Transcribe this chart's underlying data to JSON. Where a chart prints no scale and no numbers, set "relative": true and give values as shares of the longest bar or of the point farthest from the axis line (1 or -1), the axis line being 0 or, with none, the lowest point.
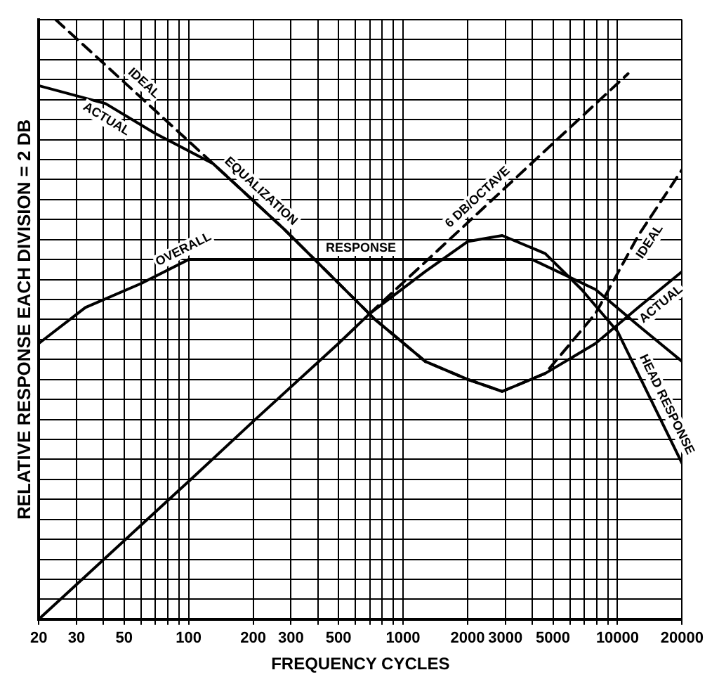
{
  "chart_data": {
    "type": "line",
    "relative": true,
    "xlabel": "FREQUENCY CYCLES",
    "ylabel": "RELATIVE RESPONSE EACH DIVISION = 2 DB",
    "log": "x",
    "grid": true,
    "legend": false,
    "marker": "none",
    "xlim": [
      20,
      20000
    ],
    "xticks": [
      20,
      30,
      {
        "value": 40,
        "label": null
      },
      50,
      {
        "value": 60,
        "label": null
      },
      {
        "value": 70,
        "label": null
      },
      {
        "value": 80,
        "label": null
      },
      {
        "value": 90,
        "label": null
      },
      100,
      200,
      300,
      {
        "value": 400,
        "label": null
      },
      500,
      {
        "value": 600,
        "label": null
      },
      {
        "value": 700,
        "label": null
      },
      {
        "value": 800,
        "label": null
      },
      {
        "value": 900,
        "label": null
      },
      1000,
      2000,
      3000,
      {
        "value": 4000,
        "label": null
      },
      5000,
      {
        "value": 6000,
        "label": null
      },
      {
        "value": 7000,
        "label": null
      },
      {
        "value": 8000,
        "label": null
      },
      {
        "value": 9000,
        "label": null
      },
      10000,
      20000
    ],
    "series": [
      {
        "color": "#000000",
        "line_style": "dashed",
        "x": [
          24,
          60,
          130,
          280,
          740,
          1270,
          2000,
          2900,
          4600,
          7900,
          12500,
          20000
        ],
        "values": [
          1.0,
          0.87,
          0.76,
          0.65,
          0.5,
          0.43,
          0.4,
          0.38,
          0.41,
          0.51,
          0.64,
          0.75
        ]
      },
      {
        "color": "#000000",
        "line_style": "solid",
        "x": [
          20,
          41,
          70,
          130,
          280,
          740,
          1270,
          2000,
          2900,
          4600,
          7900,
          12500,
          20000
        ],
        "values": [
          0.89,
          0.86,
          0.81,
          0.76,
          0.65,
          0.5,
          0.43,
          0.4,
          0.38,
          0.41,
          0.46,
          0.52,
          0.58
        ]
      },
      {
        "color": "#000000",
        "line_style": "solid",
        "x": [
          20,
          33,
          60,
          100,
          500,
          2000,
          4000,
          7900,
          12500,
          20000
        ],
        "values": [
          0.46,
          0.52,
          0.56,
          0.6,
          0.6,
          0.6,
          0.6,
          0.55,
          0.49,
          0.43
        ]
      },
      {
        "color": "#000000",
        "line_style": "solid",
        "x": [
          20,
          100,
          200,
          500,
          700,
          1270,
          2000,
          2900,
          4600,
          6800,
          10000,
          20000
        ],
        "values": [
          0.0,
          0.23,
          0.33,
          0.46,
          0.51,
          0.58,
          0.63,
          0.64,
          0.61,
          0.55,
          0.48,
          0.26
        ]
      },
      {
        "color": "#000000",
        "line_style": "dashed",
        "x": [
          700,
          11200
        ],
        "values": [
          0.51,
          0.91
        ]
      }
    ],
    "annotations": [
      {
        "text": "IDEAL",
        "x": 57,
        "y": 0.88
      },
      {
        "text": "ACTUAL",
        "x": 44,
        "y": 0.85
      },
      {
        "text": "EQUALIZATION",
        "x": 200,
        "y": 0.7
      },
      {
        "text": "OVERALL",
        "x": 100,
        "y": 0.6
      },
      {
        "text": "RESPONSE",
        "x": 636,
        "y": 0.6
      },
      {
        "text": "6 DB/OCTAVE",
        "x": 2420,
        "y": 0.69
      },
      {
        "text": "IDEAL",
        "x": 12800,
        "y": 0.64
      },
      {
        "text": "ACTUAL",
        "x": 14800,
        "y": 0.54
      },
      {
        "text": "HEAD RESPONSE",
        "x": 15200,
        "y": 0.35
      }
    ]
  }
}
